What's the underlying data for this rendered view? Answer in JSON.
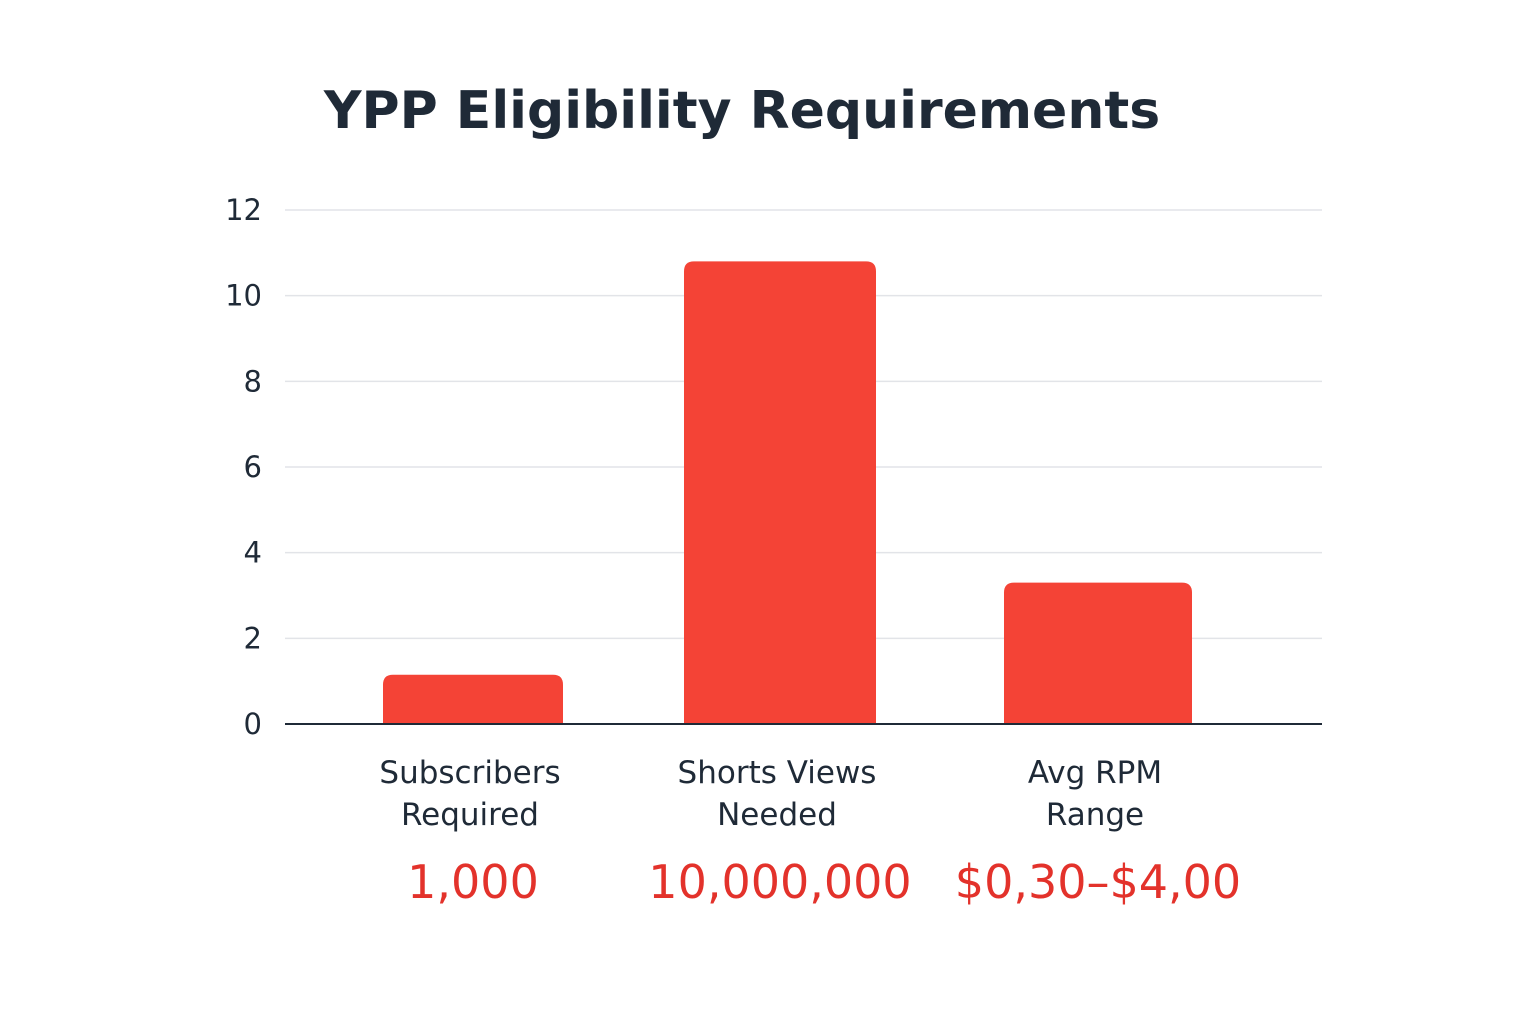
{
  "chart_data": {
    "type": "bar",
    "title": "YPP Eligibility Requirements",
    "categories": [
      [
        "Subscribers",
        "Required"
      ],
      [
        "Shorts Views",
        "Needed"
      ],
      [
        "Avg RPM",
        "Range"
      ]
    ],
    "values": [
      1.15,
      10.8,
      3.3
    ],
    "value_labels": [
      "1,000",
      "10,000,000",
      "$0,30–$4,00"
    ],
    "yticks": [
      "0",
      "2",
      "4",
      "6",
      "8",
      "10",
      "12"
    ],
    "ylim": [
      0,
      12
    ],
    "grid": true,
    "xlabel": "",
    "ylabel": "",
    "colors": {
      "bar": "#f44336",
      "value_label": "#e3322b",
      "text": "#1f2a37",
      "grid": "#e2e4e8"
    }
  }
}
